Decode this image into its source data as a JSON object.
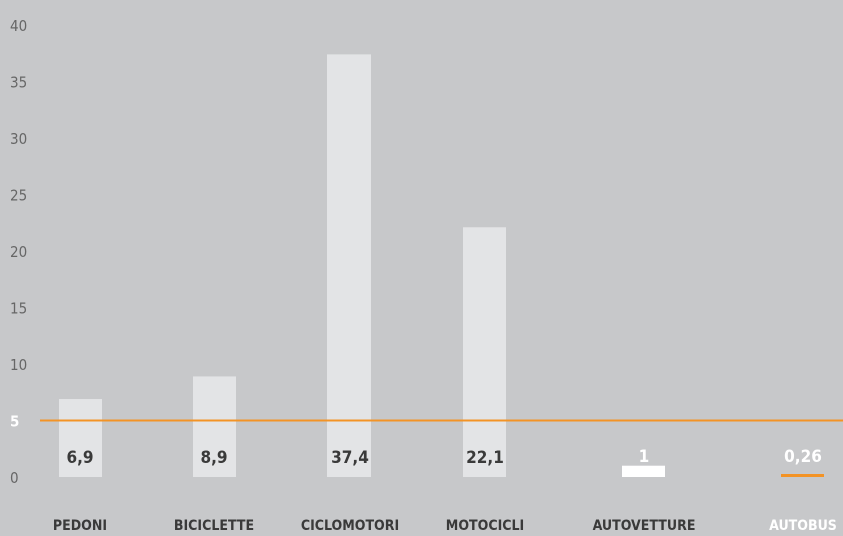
{
  "chart_data": {
    "type": "bar",
    "categories": [
      "PEDONI",
      "BICICLETTE",
      "CICLOMOTORI",
      "MOTOCICLI",
      "AUTOVETTURE",
      "AUTOBUS"
    ],
    "values": [
      6.9,
      8.9,
      37.4,
      22.1,
      1,
      0.26
    ],
    "value_labels": [
      "6,9",
      "8,9",
      "37,4",
      "22,1",
      "1",
      "0,26"
    ],
    "ylim": [
      0,
      40
    ],
    "y_ticks": [
      "0",
      "5",
      "10",
      "15",
      "20",
      "25",
      "30",
      "35",
      "40"
    ],
    "reference_line": {
      "value": 5,
      "label": "5"
    },
    "grid": false,
    "colors": {
      "background": "#c7c8ca",
      "bar": "#e3e4e6",
      "bar_highlight": "#ffffff",
      "reference_line": "#f39325",
      "text": "#3a3a3a",
      "axis_text": "#666666",
      "highlight_label": "#ffffff"
    }
  }
}
